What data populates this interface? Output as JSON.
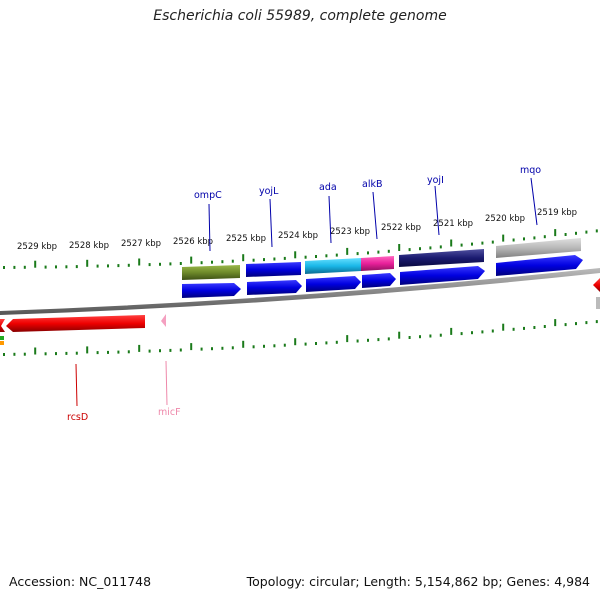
{
  "title": "Escherichia coli 55989, complete genome",
  "footer": {
    "accession": "Accession: NC_011748",
    "summary": "Topology: circular; Length: 5,154,862 bp; Genes: 4,984"
  },
  "ruler_labels": [
    "2529 kbp",
    "2528 kbp",
    "2527 kbp",
    "2526 kbp",
    "2525 kbp",
    "2524 kbp",
    "2523 kbp",
    "2522 kbp",
    "2521 kbp",
    "2520 kbp",
    "2519 kbp"
  ],
  "gene_labels": [
    {
      "text": "ompC",
      "color": "#0000aa"
    },
    {
      "text": "yojL",
      "color": "#0000aa"
    },
    {
      "text": "ada",
      "color": "#0000aa"
    },
    {
      "text": "alkB",
      "color": "#0000aa"
    },
    {
      "text": "yojI",
      "color": "#0000aa"
    },
    {
      "text": "mqo",
      "color": "#0000aa"
    },
    {
      "text": "rcsD",
      "color": "#cc0000"
    },
    {
      "text": "micF",
      "color": "#ee88aa"
    }
  ],
  "colors": {
    "backbone": "#8a8a8a",
    "tick": "#1a7a1a",
    "forward_cds": "#0000e0",
    "reverse_cds": "#ee0000"
  }
}
